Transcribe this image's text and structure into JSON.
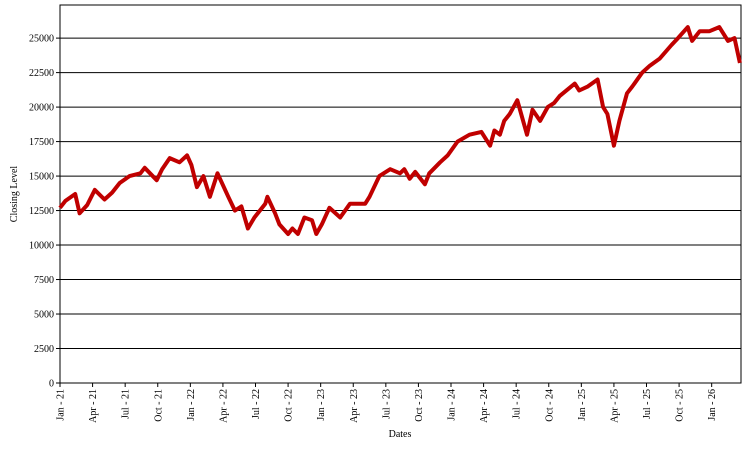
{
  "chart_data": {
    "type": "line",
    "x_label": "Dates",
    "y_label": "Closing Level",
    "xlim": [
      0,
      62.7
    ],
    "ylim": [
      0,
      27400
    ],
    "xticks": [
      {
        "value": 0,
        "label": "Jan - 21"
      },
      {
        "value": 3,
        "label": "Apr - 21"
      },
      {
        "value": 6,
        "label": "Jul - 21"
      },
      {
        "value": 9,
        "label": "Oct - 21"
      },
      {
        "value": 12,
        "label": "Jan - 22"
      },
      {
        "value": 15,
        "label": "Apr - 22"
      },
      {
        "value": 18,
        "label": "Jul - 22"
      },
      {
        "value": 21,
        "label": "Oct - 22"
      },
      {
        "value": 24,
        "label": "Jan - 23"
      },
      {
        "value": 27,
        "label": "Apr - 23"
      },
      {
        "value": 30,
        "label": "Jul - 23"
      },
      {
        "value": 33,
        "label": "Oct - 23"
      },
      {
        "value": 36,
        "label": "Jan - 24"
      },
      {
        "value": 39,
        "label": "Apr - 24"
      },
      {
        "value": 42,
        "label": "Jul - 24"
      },
      {
        "value": 45,
        "label": "Oct - 24"
      },
      {
        "value": 48,
        "label": "Jan - 25"
      },
      {
        "value": 51,
        "label": "Apr - 25"
      },
      {
        "value": 54,
        "label": "Jul - 25"
      },
      {
        "value": 57,
        "label": "Oct - 25"
      },
      {
        "value": 60,
        "label": "Jan - 26"
      }
    ],
    "yticks": [
      0,
      2500,
      5000,
      7500,
      10000,
      12500,
      15000,
      17500,
      20000,
      22500,
      25000
    ],
    "grid": true,
    "x": [
      0.0,
      0.5,
      1.4,
      1.8,
      2.5,
      3.2,
      4.1,
      4.8,
      5.5,
      6.4,
      7.4,
      7.8,
      8.9,
      9.4,
      10.1,
      11.0,
      11.7,
      12.1,
      12.6,
      13.2,
      13.8,
      14.5,
      15.5,
      16.1,
      16.7,
      17.3,
      17.9,
      18.9,
      19.1,
      19.8,
      20.2,
      21.0,
      21.4,
      21.9,
      22.5,
      23.2,
      23.6,
      24.1,
      24.8,
      25.8,
      26.7,
      28.1,
      28.5,
      29.4,
      30.4,
      31.3,
      31.7,
      32.2,
      32.7,
      33.6,
      34.0,
      35.0,
      35.7,
      36.6,
      37.7,
      38.8,
      39.6,
      40.0,
      40.5,
      40.9,
      41.4,
      42.1,
      43.0,
      43.5,
      44.2,
      44.9,
      45.5,
      46.0,
      47.4,
      47.8,
      48.6,
      49.5,
      50.0,
      50.4,
      51.0,
      51.5,
      52.2,
      52.7,
      53.6,
      54.3,
      55.2,
      56.3,
      56.9,
      57.8,
      58.2,
      58.9,
      59.8,
      60.7,
      61.5,
      62.1,
      62.6
    ],
    "series": [
      {
        "name": "Closing Level",
        "color": "#c00000",
        "values": [
          12700,
          13200,
          13700,
          12300,
          12900,
          14000,
          13300,
          13800,
          14500,
          15000,
          15200,
          15600,
          14700,
          15500,
          16300,
          16000,
          16500,
          15800,
          14200,
          15000,
          13500,
          15200,
          13500,
          12500,
          12800,
          11200,
          12000,
          13000,
          13500,
          12300,
          11500,
          10800,
          11200,
          10800,
          12000,
          11800,
          10800,
          11500,
          12700,
          12000,
          13000,
          13000,
          13500,
          15000,
          15500,
          15200,
          15500,
          14800,
          15300,
          14400,
          15200,
          16000,
          16500,
          17500,
          18000,
          18200,
          17200,
          18300,
          18000,
          19000,
          19500,
          20500,
          18000,
          19800,
          19000,
          20000,
          20300,
          20800,
          21700,
          21200,
          21500,
          22000,
          20000,
          19500,
          17200,
          19000,
          21000,
          21500,
          22500,
          23000,
          23500,
          24500,
          25000,
          25800,
          24800,
          25500,
          25500,
          25800,
          24800,
          25000,
          23200
        ]
      }
    ]
  }
}
